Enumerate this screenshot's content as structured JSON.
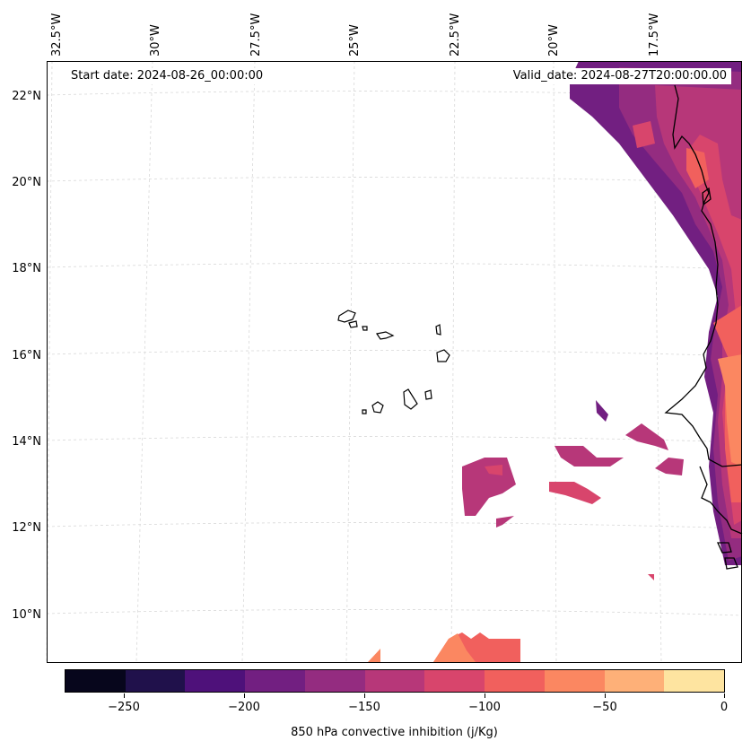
{
  "map": {
    "lon_labels": [
      "32.5°W",
      "30°W",
      "27.5°W",
      "25°W",
      "22.5°W",
      "20°W",
      "17.5°W"
    ],
    "lat_labels": [
      "22°N",
      "20°N",
      "18°N",
      "16°N",
      "14°N",
      "12°N",
      "10°N"
    ],
    "start_date": "Start date: 2024-08-26_00:00:00",
    "valid_date": "Valid_date: 2024-08-27T20:00:00.00",
    "gridlines": true
  },
  "colorbar": {
    "label": "850 hPa convective inhibition (j/Kg)",
    "tick_labels": [
      "−250",
      "−200",
      "−150",
      "−100",
      "−50",
      "0"
    ],
    "colors": [
      "#07061c",
      "#20114b",
      "#4e117a",
      "#721f81",
      "#942c80",
      "#b73779",
      "#d8456c",
      "#f1605d",
      "#fb8761",
      "#feb078",
      "#fee4a0"
    ]
  }
}
